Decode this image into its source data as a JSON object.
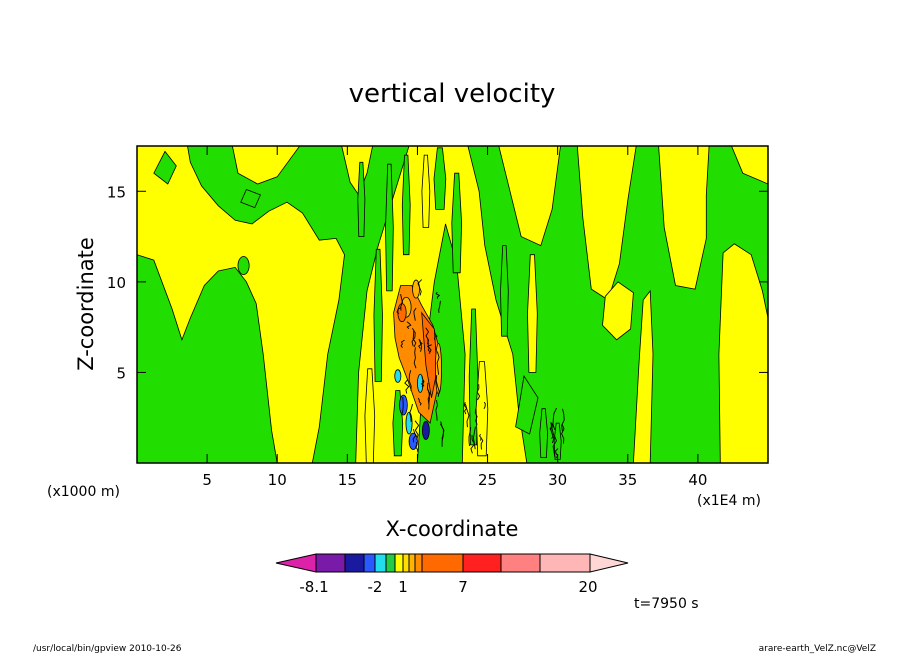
{
  "chart_data": {
    "type": "heatmap",
    "title": "vertical velocity",
    "xlabel": "X-coordinate",
    "ylabel": "Z-coordinate",
    "x_unit_note": "(x1000 m)",
    "x_unit_note_right": "(x1E4 m)",
    "xlim": [
      0,
      45
    ],
    "ylim": [
      0,
      17.5
    ],
    "x_ticks": [
      "5",
      "10",
      "15",
      "20",
      "25",
      "30",
      "35",
      "40"
    ],
    "x_tick_values": [
      5,
      10,
      15,
      20,
      25,
      30,
      35,
      40
    ],
    "y_ticks": [
      "5",
      "10",
      "15"
    ],
    "y_tick_values": [
      5,
      10,
      15
    ],
    "grid": false,
    "colorbar": {
      "labels": [
        "-8.1",
        "-2",
        "1",
        "7",
        "20"
      ],
      "label_levels": [
        -8.1,
        -2,
        1,
        7,
        20
      ],
      "colors": [
        "#dd22aa",
        "#7a1aa8",
        "#1a1aa0",
        "#2a5aff",
        "#22ddee",
        "#22cc44",
        "#ffff00",
        "#ffdd00",
        "#ffb400",
        "#ff8c00",
        "#ff6a00",
        "#ff2020",
        "#ff8080",
        "#ffb6b6",
        "#ffd6d6"
      ],
      "extend": "both"
    },
    "dominant_fields": {
      "weak_positive_color": "#ffff00",
      "weak_negative_color": "#22dd00"
    },
    "annotations": {
      "time": "t=7950 s"
    }
  },
  "footer": {
    "left": "/usr/local/bin/gpview  2010-10-26",
    "right": "arare-earth_VelZ.nc@VelZ"
  }
}
